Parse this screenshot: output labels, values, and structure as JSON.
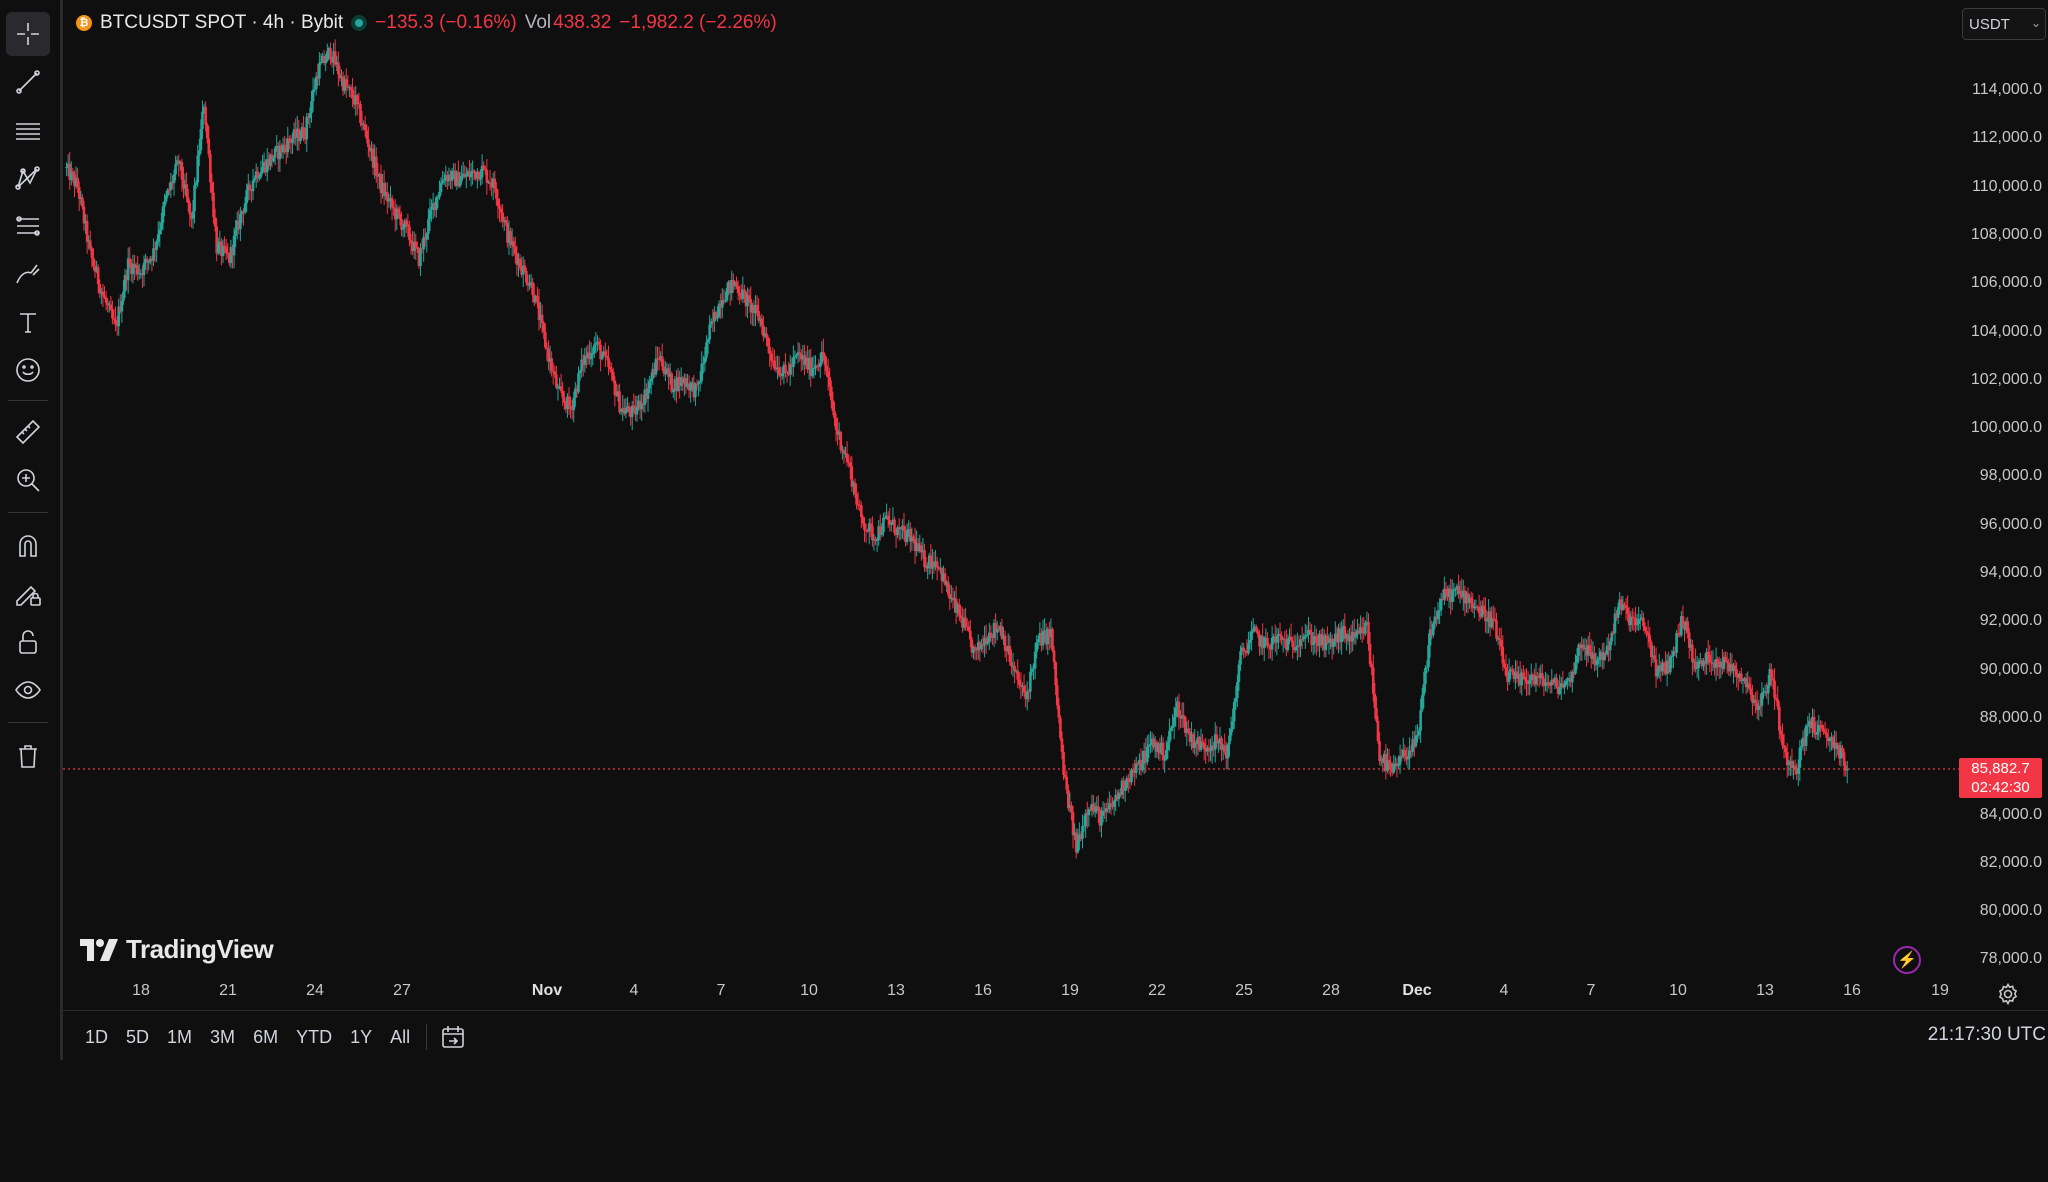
{
  "legend": {
    "symbol_badge": "₿",
    "title": "BTCUSDT SPOT · 4h · Bybit",
    "change": "−135.3 (−0.16%)",
    "vol_label": "Vol",
    "vol_value": "438.32",
    "vol_change": "−1,982.2 (−2.26%)"
  },
  "currency": {
    "value": "USDT"
  },
  "price_axis": {
    "labels": [
      "114,000.0",
      "112,000.0",
      "110,000.0",
      "108,000.0",
      "106,000.0",
      "104,000.0",
      "102,000.0",
      "100,000.0",
      "98,000.0",
      "96,000.0",
      "94,000.0",
      "92,000.0",
      "90,000.0",
      "88,000.0",
      "84,000.0",
      "82,000.0",
      "80,000.0",
      "78,000.0"
    ]
  },
  "current_price": {
    "value": "85,882.7",
    "countdown": "02:42:30"
  },
  "time_axis": {
    "labels": [
      "18",
      "21",
      "24",
      "27",
      "Nov",
      "4",
      "7",
      "10",
      "13",
      "16",
      "19",
      "22",
      "25",
      "28",
      "Dec",
      "4",
      "7",
      "10",
      "13",
      "16",
      "19"
    ]
  },
  "logo": {
    "text": "TradingView"
  },
  "bottom_bar": {
    "ranges": [
      "1D",
      "5D",
      "1M",
      "3M",
      "6M",
      "YTD",
      "1Y",
      "All"
    ],
    "clock": "21:17:30 UTC"
  },
  "toolbar": {
    "icons": [
      "crosshair-icon",
      "trend-line-icon",
      "horizontal-lines-icon",
      "pattern-icon",
      "fib-icon",
      "brush-icon",
      "text-icon",
      "emoji-icon",
      "ruler-icon",
      "zoom-in-icon",
      "magnet-icon",
      "lock-draw-icon",
      "lock-icon",
      "eye-icon",
      "trash-icon"
    ]
  },
  "colors": {
    "up": "#26a69a",
    "down": "#f23645",
    "background": "#0f0f0f"
  },
  "chart_data": {
    "type": "candlestick",
    "symbol": "BTCUSDT",
    "timeframe": "4h",
    "ylim": [
      77000,
      116000
    ],
    "x_start": "Oct 15",
    "x_end": "Dec 19",
    "current_price": 85882.7,
    "path": [
      [
        0,
        110800
      ],
      [
        8,
        110000
      ],
      [
        16,
        107200
      ],
      [
        24,
        105500
      ],
      [
        32,
        104100
      ],
      [
        40,
        106800
      ],
      [
        48,
        106500
      ],
      [
        56,
        107300
      ],
      [
        64,
        109500
      ],
      [
        72,
        111000
      ],
      [
        80,
        108500
      ],
      [
        88,
        113500
      ],
      [
        96,
        107500
      ],
      [
        104,
        107000
      ],
      [
        112,
        109000
      ],
      [
        120,
        110500
      ],
      [
        128,
        111000
      ],
      [
        136,
        111500
      ],
      [
        144,
        112000
      ],
      [
        152,
        112300
      ],
      [
        160,
        114800
      ],
      [
        168,
        115600
      ],
      [
        176,
        114300
      ],
      [
        184,
        113500
      ],
      [
        192,
        111800
      ],
      [
        200,
        110000
      ],
      [
        208,
        109000
      ],
      [
        216,
        108200
      ],
      [
        224,
        107000
      ],
      [
        232,
        109000
      ],
      [
        240,
        110500
      ],
      [
        248,
        110300
      ],
      [
        256,
        110500
      ],
      [
        264,
        110700
      ],
      [
        272,
        110000
      ],
      [
        280,
        108000
      ],
      [
        288,
        106800
      ],
      [
        296,
        105800
      ],
      [
        304,
        103500
      ],
      [
        312,
        101500
      ],
      [
        320,
        100800
      ],
      [
        328,
        102800
      ],
      [
        336,
        103500
      ],
      [
        344,
        102500
      ],
      [
        352,
        100800
      ],
      [
        360,
        100600
      ],
      [
        368,
        101500
      ],
      [
        376,
        103000
      ],
      [
        384,
        101800
      ],
      [
        392,
        102000
      ],
      [
        400,
        101500
      ],
      [
        408,
        104000
      ],
      [
        416,
        105500
      ],
      [
        424,
        106000
      ],
      [
        432,
        105200
      ],
      [
        440,
        104500
      ],
      [
        448,
        102800
      ],
      [
        456,
        102200
      ],
      [
        464,
        103000
      ],
      [
        472,
        102500
      ],
      [
        480,
        103000
      ],
      [
        488,
        100000
      ],
      [
        496,
        98500
      ],
      [
        504,
        96200
      ],
      [
        512,
        95500
      ],
      [
        520,
        96200
      ],
      [
        528,
        95700
      ],
      [
        536,
        95400
      ],
      [
        544,
        94500
      ],
      [
        552,
        94500
      ],
      [
        560,
        93000
      ],
      [
        568,
        92000
      ],
      [
        576,
        90600
      ],
      [
        584,
        91500
      ],
      [
        592,
        91800
      ],
      [
        600,
        90000
      ],
      [
        608,
        88800
      ],
      [
        616,
        91200
      ],
      [
        624,
        91500
      ],
      [
        632,
        85700
      ],
      [
        640,
        82600
      ],
      [
        648,
        84500
      ],
      [
        656,
        83800
      ],
      [
        664,
        84500
      ],
      [
        672,
        85500
      ],
      [
        680,
        86000
      ],
      [
        688,
        87000
      ],
      [
        696,
        86500
      ],
      [
        704,
        88500
      ],
      [
        712,
        87200
      ],
      [
        720,
        86800
      ],
      [
        728,
        87000
      ],
      [
        736,
        86600
      ],
      [
        744,
        90500
      ],
      [
        752,
        91500
      ],
      [
        760,
        91000
      ],
      [
        768,
        91300
      ],
      [
        776,
        91000
      ],
      [
        784,
        91500
      ],
      [
        792,
        91200
      ],
      [
        800,
        91000
      ],
      [
        808,
        91500
      ],
      [
        816,
        91200
      ],
      [
        824,
        91800
      ],
      [
        832,
        86500
      ],
      [
        840,
        85700
      ],
      [
        848,
        86500
      ],
      [
        856,
        87000
      ],
      [
        864,
        91500
      ],
      [
        872,
        93000
      ],
      [
        880,
        93200
      ],
      [
        888,
        93000
      ],
      [
        896,
        92400
      ],
      [
        904,
        92000
      ],
      [
        912,
        89800
      ],
      [
        920,
        89500
      ],
      [
        928,
        89700
      ],
      [
        936,
        89500
      ],
      [
        944,
        89300
      ],
      [
        952,
        89500
      ],
      [
        960,
        91200
      ],
      [
        968,
        90300
      ],
      [
        976,
        90800
      ],
      [
        984,
        92700
      ],
      [
        992,
        92000
      ],
      [
        1000,
        91800
      ],
      [
        1008,
        89800
      ],
      [
        1016,
        90300
      ],
      [
        1024,
        92200
      ],
      [
        1032,
        90000
      ],
      [
        1040,
        90500
      ],
      [
        1048,
        90300
      ],
      [
        1056,
        90100
      ],
      [
        1064,
        89500
      ],
      [
        1072,
        88400
      ],
      [
        1080,
        89900
      ],
      [
        1088,
        86500
      ],
      [
        1096,
        86000
      ],
      [
        1104,
        87900
      ],
      [
        1112,
        87300
      ],
      [
        1120,
        87000
      ],
      [
        1128,
        85883
      ]
    ]
  }
}
